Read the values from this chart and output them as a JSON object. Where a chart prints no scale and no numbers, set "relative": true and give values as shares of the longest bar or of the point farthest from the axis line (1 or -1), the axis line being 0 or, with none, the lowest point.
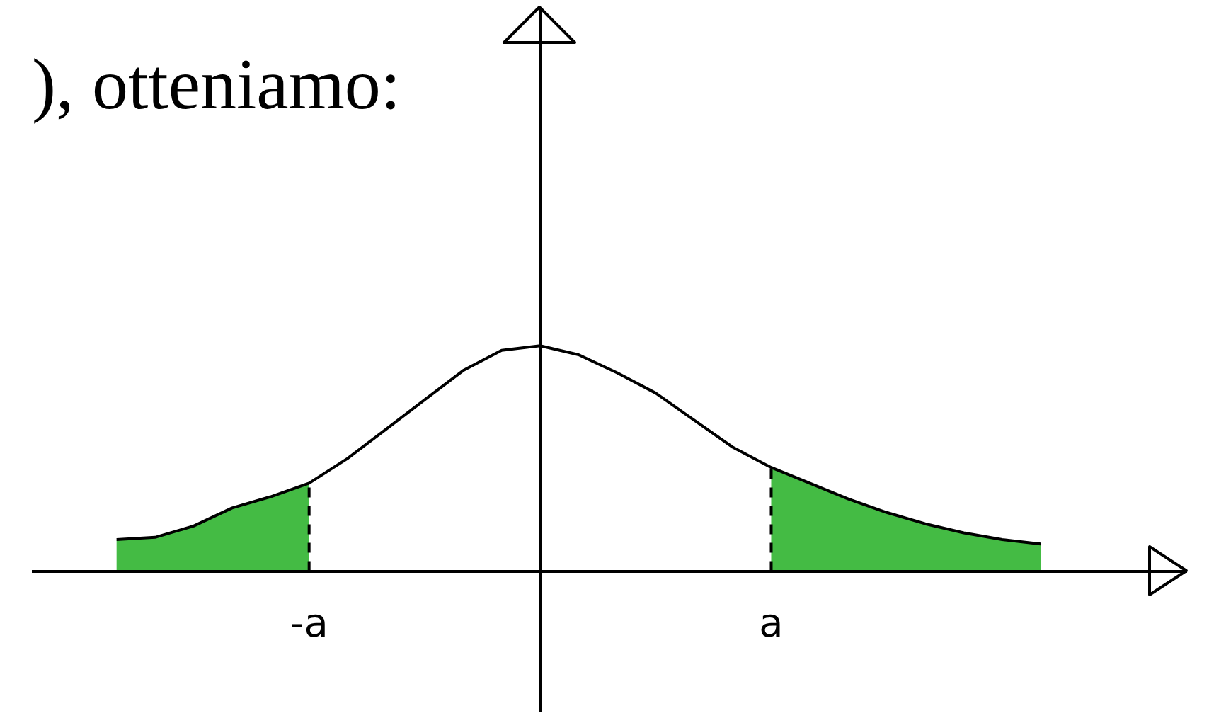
{
  "chart_data": {
    "type": "line",
    "title": "), otteniamo:",
    "relative": true,
    "categories": [
      null,
      null,
      null,
      null,
      null,
      "-a",
      null,
      null,
      null,
      null,
      null,
      null,
      null,
      null,
      null,
      null,
      null,
      "a",
      null,
      null,
      null,
      null,
      null,
      null,
      null
    ],
    "ref_lines": [
      {
        "axis": "x",
        "value": "-a",
        "line_style": "dashed"
      },
      {
        "axis": "x",
        "value": "a",
        "line_style": "dashed"
      }
    ],
    "series": [
      {
        "type": "area",
        "color": "#44bb44",
        "values": [
          0.14,
          0.15,
          0.2,
          0.28,
          0.33,
          0.39,
          null,
          null,
          null,
          null,
          null,
          null,
          null,
          null,
          null,
          null,
          null,
          null,
          null,
          null,
          null,
          null,
          null,
          null,
          null
        ]
      },
      {
        "type": "area",
        "color": "#44bb44",
        "values": [
          null,
          null,
          null,
          null,
          null,
          null,
          null,
          null,
          null,
          null,
          null,
          null,
          null,
          null,
          null,
          null,
          null,
          0.46,
          0.39,
          0.32,
          0.26,
          0.21,
          0.17,
          0.14,
          0.12
        ]
      },
      {
        "color": "#000000",
        "values": [
          0.14,
          0.15,
          0.2,
          0.28,
          0.33,
          0.39,
          0.5,
          0.63,
          0.76,
          0.89,
          0.98,
          1.0,
          0.96,
          0.88,
          0.79,
          0.67,
          0.55,
          0.46,
          0.39,
          0.32,
          0.26,
          0.21,
          0.17,
          0.14,
          0.12
        ]
      }
    ]
  }
}
